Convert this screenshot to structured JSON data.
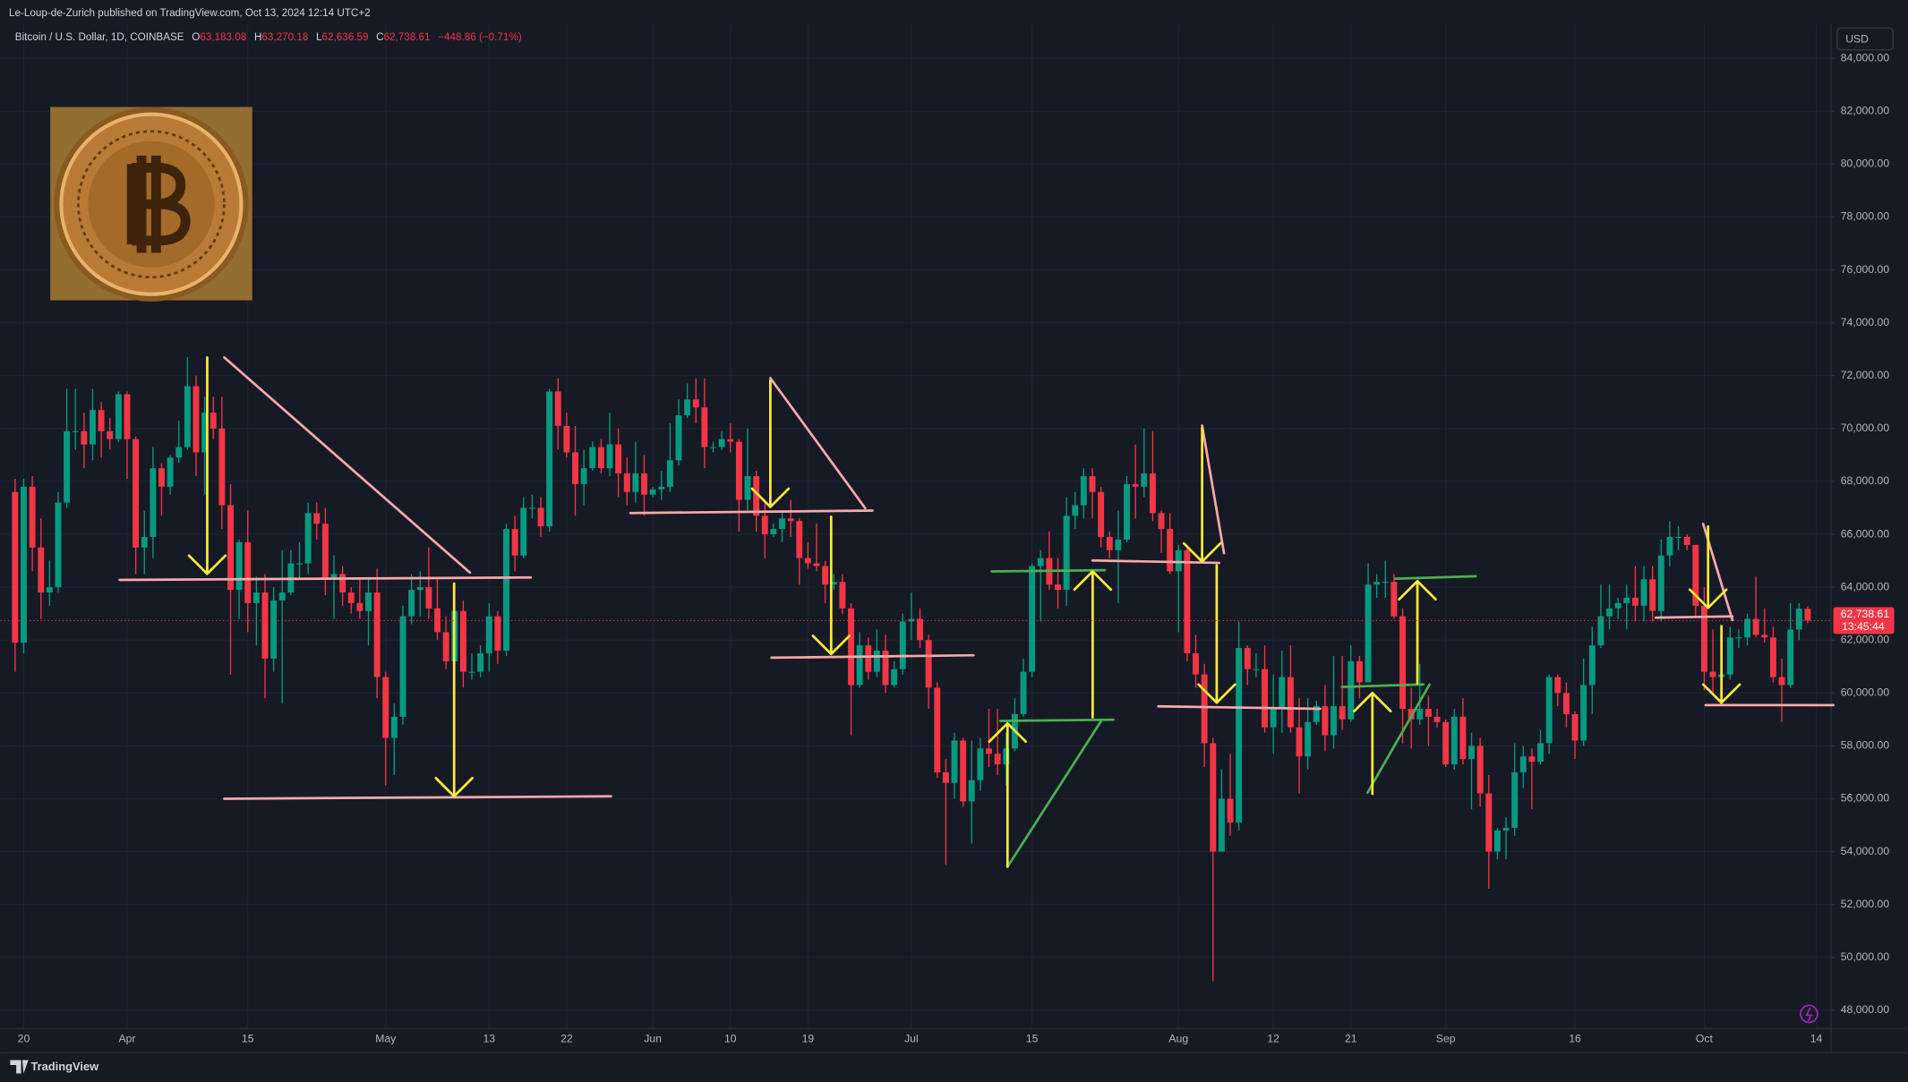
{
  "published_by": "Le-Loup-de-Zurich published on TradingView.com, Oct 13, 2024 12:14 UTC+2",
  "brand": "TradingView",
  "chart_data": {
    "type": "candlestick",
    "title": "Bitcoin / U.S. Dollar, 1D, COINBASE",
    "ohlc_legend": [
      {
        "label": "O",
        "value": "63,183.08"
      },
      {
        "label": "H",
        "value": "63,270.18"
      },
      {
        "label": "L",
        "value": "62,636.59"
      },
      {
        "label": "C",
        "value": "62,738.61"
      }
    ],
    "change_label": "−448.86 (−0.71%)",
    "currency": "USD",
    "last_price_label": "62,738.61",
    "countdown_label": "13:45:44",
    "up_color": "#089981",
    "down_color": "#f23645",
    "grid": true,
    "xlim": [
      -1.7,
      210.7
    ],
    "ylim": [
      47310,
      85287
    ],
    "xticks": [
      {
        "value": 1,
        "label": "20"
      },
      {
        "value": 13,
        "label": "Apr"
      },
      {
        "value": 27,
        "label": "15"
      },
      {
        "value": 43,
        "label": "May"
      },
      {
        "value": 55,
        "label": "13"
      },
      {
        "value": 64,
        "label": "22"
      },
      {
        "value": 74,
        "label": "Jun"
      },
      {
        "value": 83,
        "label": "10"
      },
      {
        "value": 92,
        "label": "19"
      },
      {
        "value": 104,
        "label": "Jul"
      },
      {
        "value": 118,
        "label": "15"
      },
      {
        "value": 135,
        "label": "Aug"
      },
      {
        "value": 146,
        "label": "12"
      },
      {
        "value": 155,
        "label": "21"
      },
      {
        "value": 166,
        "label": "Sep"
      },
      {
        "value": 181,
        "label": "16"
      },
      {
        "value": 196,
        "label": "Oct"
      },
      {
        "value": 209,
        "label": "14"
      }
    ],
    "yticks": [
      {
        "value": 48000,
        "label": "48,000.00"
      },
      {
        "value": 50000,
        "label": "50,000.00"
      },
      {
        "value": 52000,
        "label": "52,000.00"
      },
      {
        "value": 54000,
        "label": "54,000.00"
      },
      {
        "value": 56000,
        "label": "56,000.00"
      },
      {
        "value": 58000,
        "label": "58,000.00"
      },
      {
        "value": 60000,
        "label": "60,000.00"
      },
      {
        "value": 62000,
        "label": "62,000.00"
      },
      {
        "value": 64000,
        "label": "64,000.00"
      },
      {
        "value": 66000,
        "label": "66,000.00"
      },
      {
        "value": 68000,
        "label": "68,000.00"
      },
      {
        "value": 70000,
        "label": "70,000.00"
      },
      {
        "value": 72000,
        "label": "72,000.00"
      },
      {
        "value": 74000,
        "label": "74,000.00"
      },
      {
        "value": 76000,
        "label": "76,000.00"
      },
      {
        "value": 78000,
        "label": "78,000.00"
      },
      {
        "value": 80000,
        "label": "80,000.00"
      },
      {
        "value": 82000,
        "label": "82,000.00"
      },
      {
        "value": 84000,
        "label": "84,000.00"
      }
    ],
    "open": [
      67600,
      61900,
      67800,
      65500,
      63800,
      64000,
      67200,
      69900,
      69900,
      69400,
      70700,
      69900,
      69600,
      71300,
      69600,
      65500,
      65900,
      68500,
      67800,
      68900,
      69300,
      71600,
      69100,
      70600,
      70000,
      67100,
      63900,
      65700,
      63400,
      63800,
      61300,
      63500,
      63800,
      64900,
      64900,
      66800,
      66400,
      64300,
      64500,
      63800,
      63400,
      63100,
      63800,
      60600,
      58300,
      59100,
      62900,
      63900,
      64000,
      63200,
      62300,
      61200,
      63100,
      60800,
      60800,
      61500,
      62900,
      61600,
      66200,
      65200,
      67000,
      67000,
      66300,
      71400,
      70100,
      69100,
      67900,
      68500,
      69300,
      68500,
      69400,
      68300,
      67600,
      68300,
      67500,
      67700,
      67800,
      68800,
      70500,
      71100,
      70800,
      69300,
      69300,
      69600,
      69500,
      67300,
      68200,
      66700,
      66000,
      66200,
      66600,
      66500,
      65100,
      64900,
      64800,
      64100,
      64200,
      63200,
      60300,
      61800,
      60800,
      61600,
      60300,
      60900,
      62700,
      62800,
      62000,
      60200,
      57000,
      56600,
      58200,
      55900,
      56700,
      57900,
      57700,
      57300,
      57900,
      59200,
      60800,
      64800,
      65100,
      64100,
      63900,
      66700,
      67100,
      68200,
      67600,
      65900,
      65400,
      65800,
      67900,
      67800,
      68300,
      66800,
      66200,
      64600,
      65400,
      61500,
      60700,
      58100,
      54000,
      56000,
      55100,
      61700,
      60900,
      60900,
      58700,
      59400,
      60600,
      58700,
      57600,
      58900,
      59500,
      58400,
      59500,
      59000,
      61200,
      60400,
      64100,
      64200,
      64200,
      62900,
      59400,
      59000,
      59400,
      59100,
      58900,
      57300,
      59100,
      57500,
      58000,
      56200,
      54000,
      54800,
      54900,
      57000,
      57600,
      57400,
      58100,
      60600,
      60000,
      59200,
      58200,
      60300,
      61800,
      62900,
      63200,
      63400,
      63600,
      63300,
      64300,
      63100,
      65200,
      65900,
      65900,
      65600,
      63300,
      60800,
      60600,
      60700,
      62100,
      62100,
      62800,
      62200,
      62100,
      60600,
      60300,
      62400,
      63183.08
    ],
    "high": [
      68100,
      68100,
      68200,
      66600,
      65000,
      67600,
      71500,
      71500,
      70600,
      71500,
      71000,
      70400,
      71400,
      71400,
      69700,
      66900,
      69300,
      68700,
      69000,
      70300,
      72700,
      72000,
      71200,
      71200,
      71200,
      67900,
      65800,
      66900,
      64400,
      64500,
      64000,
      65400,
      65400,
      65700,
      67200,
      67200,
      67000,
      65200,
      64800,
      64000,
      64300,
      64300,
      64700,
      60800,
      59600,
      63300,
      64500,
      64600,
      65500,
      64400,
      62900,
      63200,
      63500,
      61500,
      61800,
      63400,
      63100,
      66400,
      66700,
      67400,
      67500,
      67400,
      71500,
      71900,
      70600,
      70100,
      69200,
      69500,
      69600,
      70600,
      70000,
      68900,
      69500,
      69000,
      67800,
      68400,
      70200,
      71100,
      71700,
      71900,
      71900,
      69500,
      69900,
      70200,
      69600,
      70000,
      68400,
      67300,
      66400,
      66900,
      67300,
      66600,
      65700,
      66400,
      65000,
      64500,
      64500,
      63400,
      62300,
      62100,
      62400,
      62200,
      61200,
      63000,
      63800,
      63200,
      62200,
      60400,
      57500,
      58500,
      58300,
      58200,
      58300,
      59400,
      59400,
      58500,
      59800,
      61300,
      64900,
      65400,
      66100,
      65100,
      67400,
      67600,
      68500,
      68500,
      67800,
      66100,
      66900,
      68200,
      69400,
      70000,
      69900,
      66900,
      66800,
      65600,
      65600,
      62200,
      61100,
      58300,
      57100,
      57700,
      62700,
      61800,
      61500,
      61800,
      60700,
      61600,
      61800,
      59800,
      59800,
      59700,
      60300,
      61400,
      61400,
      61800,
      61400,
      64900,
      64500,
      65000,
      64500,
      63200,
      60200,
      61100,
      59900,
      59400,
      59000,
      59400,
      59800,
      58500,
      58300,
      56900,
      54900,
      55300,
      58100,
      58000,
      57900,
      58600,
      60700,
      60700,
      60400,
      59300,
      61300,
      62500,
      64100,
      64100,
      63600,
      64100,
      64800,
      64800,
      64800,
      65800,
      66500,
      66300,
      66000,
      65600,
      64000,
      62400,
      61100,
      62500,
      62400,
      63000,
      64400,
      63200,
      62500,
      61300,
      63400,
      63400,
      63270.18
    ],
    "low": [
      60800,
      61500,
      64600,
      62800,
      63300,
      63800,
      67000,
      69200,
      68500,
      68800,
      68900,
      69200,
      69500,
      68100,
      64500,
      64500,
      65100,
      66700,
      67500,
      68700,
      69200,
      68200,
      67500,
      69600,
      66200,
      60700,
      62800,
      62300,
      61800,
      59800,
      60800,
      59600,
      63700,
      64300,
      64500,
      65800,
      63700,
      62800,
      63300,
      63000,
      62800,
      61800,
      59800,
      56500,
      56900,
      58800,
      62600,
      62900,
      62800,
      62000,
      60900,
      60600,
      60200,
      60500,
      60600,
      60800,
      61100,
      61400,
      64600,
      65100,
      66600,
      65900,
      66100,
      69200,
      68900,
      66700,
      67100,
      68400,
      68300,
      68200,
      67400,
      67100,
      67200,
      66700,
      67400,
      67300,
      67600,
      68600,
      70400,
      70200,
      68500,
      69100,
      69200,
      69100,
      66100,
      66900,
      66100,
      65100,
      65900,
      65700,
      65900,
      64100,
      64700,
      64600,
      63400,
      63900,
      63000,
      58400,
      60200,
      60500,
      60600,
      60000,
      60200,
      60700,
      62000,
      61700,
      59400,
      56800,
      53500,
      56000,
      55700,
      54300,
      56300,
      57200,
      56900,
      56500,
      57800,
      59100,
      60600,
      62700,
      63900,
      63200,
      63300,
      66200,
      66600,
      66600,
      65500,
      65100,
      63400,
      65700,
      66600,
      67400,
      66500,
      65300,
      64500,
      62300,
      61200,
      60200,
      57200,
      49100,
      54000,
      54600,
      54800,
      60300,
      60600,
      58500,
      57700,
      58500,
      58500,
      56200,
      57100,
      58800,
      57800,
      57900,
      58600,
      58900,
      59800,
      60400,
      63600,
      63600,
      62800,
      58100,
      57900,
      58800,
      58000,
      58700,
      57200,
      57100,
      57300,
      55600,
      55700,
      52600,
      53700,
      53700,
      54600,
      56400,
      55600,
      57300,
      57700,
      59500,
      58700,
      57500,
      58000,
      59200,
      61700,
      62400,
      62800,
      62400,
      62700,
      62700,
      62700,
      62700,
      64800,
      65400,
      65400,
      62900,
      60100,
      60000,
      59900,
      60500,
      61700,
      61800,
      62100,
      61900,
      60400,
      58900,
      60200,
      62000,
      62636.59
    ],
    "close": [
      61900,
      67800,
      65500,
      63800,
      64000,
      67200,
      69900,
      69900,
      69400,
      70700,
      69900,
      69600,
      71300,
      69600,
      65500,
      65900,
      68500,
      67800,
      68900,
      69300,
      71600,
      69100,
      70600,
      70000,
      67100,
      63900,
      65700,
      63400,
      63800,
      61300,
      63500,
      63800,
      64900,
      64900,
      66800,
      66400,
      64300,
      64500,
      63800,
      63400,
      63100,
      63800,
      60600,
      58300,
      59100,
      62900,
      63900,
      64000,
      63200,
      62300,
      61200,
      63100,
      60800,
      60800,
      61500,
      62900,
      61600,
      66200,
      65200,
      67000,
      67000,
      66300,
      71400,
      70100,
      69100,
      67900,
      68500,
      69300,
      68500,
      69400,
      68300,
      67600,
      68300,
      67500,
      67700,
      67800,
      68800,
      70500,
      71100,
      70800,
      69300,
      69300,
      69600,
      69500,
      67300,
      68200,
      66700,
      66000,
      66200,
      66600,
      66500,
      65100,
      64900,
      64800,
      64100,
      64200,
      63200,
      60300,
      61800,
      60800,
      61600,
      60300,
      60900,
      62700,
      62800,
      62000,
      60200,
      57000,
      56600,
      58200,
      55900,
      56700,
      57900,
      57700,
      57300,
      57900,
      59200,
      60800,
      64800,
      65100,
      64100,
      63900,
      66700,
      67100,
      68200,
      67600,
      65900,
      65400,
      65800,
      67900,
      67800,
      68300,
      66800,
      66200,
      64600,
      65400,
      61500,
      60700,
      58100,
      54000,
      56000,
      55100,
      61700,
      60900,
      60900,
      58700,
      59400,
      60600,
      58700,
      57600,
      58900,
      59500,
      58400,
      59500,
      59000,
      61200,
      60400,
      64100,
      64200,
      64200,
      62900,
      59400,
      59000,
      59400,
      59100,
      58900,
      57300,
      59100,
      57500,
      58000,
      56200,
      54000,
      54800,
      54900,
      57000,
      57600,
      57400,
      58100,
      60600,
      60000,
      59200,
      58200,
      60300,
      61800,
      62900,
      63200,
      63400,
      63600,
      63300,
      64300,
      63100,
      65200,
      65900,
      65900,
      65600,
      63300,
      60800,
      60600,
      60700,
      62100,
      62100,
      62800,
      62200,
      62100,
      60600,
      60300,
      62400,
      63183.08,
      62738.61
    ]
  }
}
